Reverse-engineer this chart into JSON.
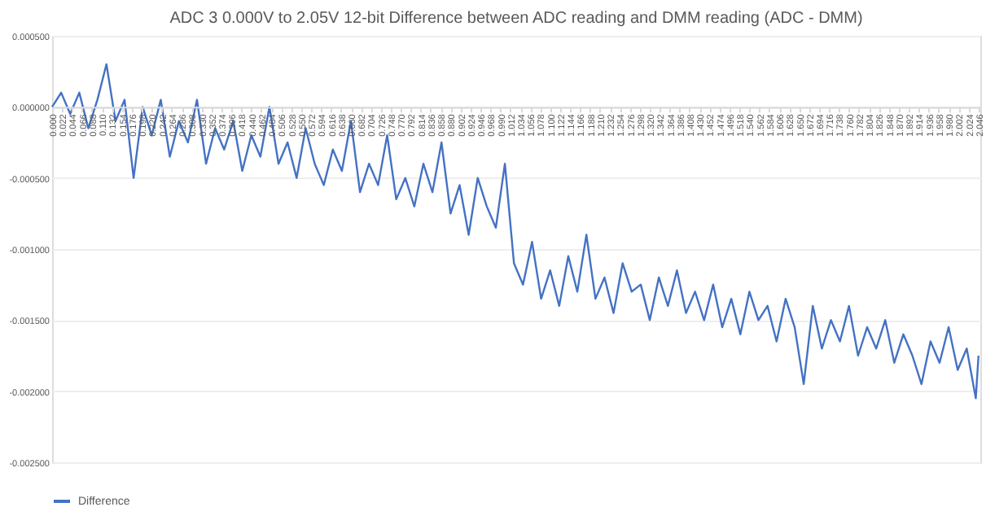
{
  "chart_data": {
    "type": "line",
    "title": "ADC 3 0.000V to 2.05V 12-bit Difference between ADC reading and DMM reading (ADC - DMM)",
    "x": [
      0.0,
      0.02,
      0.04,
      0.06,
      0.08,
      0.1,
      0.12,
      0.14,
      0.16,
      0.18,
      0.2,
      0.22,
      0.24,
      0.26,
      0.28,
      0.3,
      0.32,
      0.34,
      0.36,
      0.38,
      0.4,
      0.42,
      0.44,
      0.46,
      0.48,
      0.5,
      0.52,
      0.54,
      0.56,
      0.58,
      0.6,
      0.62,
      0.64,
      0.66,
      0.68,
      0.7,
      0.72,
      0.74,
      0.76,
      0.78,
      0.8,
      0.82,
      0.84,
      0.86,
      0.88,
      0.9,
      0.92,
      0.94,
      0.96,
      0.98,
      1.0,
      1.02,
      1.04,
      1.06,
      1.08,
      1.1,
      1.12,
      1.14,
      1.16,
      1.18,
      1.2,
      1.22,
      1.24,
      1.26,
      1.28,
      1.3,
      1.32,
      1.34,
      1.36,
      1.38,
      1.4,
      1.42,
      1.44,
      1.46,
      1.48,
      1.5,
      1.52,
      1.54,
      1.56,
      1.58,
      1.6,
      1.62,
      1.64,
      1.66,
      1.68,
      1.7,
      1.72,
      1.74,
      1.76,
      1.78,
      1.8,
      1.82,
      1.84,
      1.86,
      1.88,
      1.9,
      1.92,
      1.94,
      1.96,
      1.98,
      2.0,
      2.02,
      2.04,
      2.046
    ],
    "series": [
      {
        "name": "Difference",
        "color": "#4472c4",
        "values": [
          0,
          0.0001,
          -5e-05,
          0.0001,
          -0.00015,
          5e-05,
          0.0003,
          -0.0001,
          5e-05,
          -0.0005,
          0,
          -0.0002,
          5e-05,
          -0.00035,
          -0.0001,
          -0.00025,
          5e-05,
          -0.0004,
          -0.00015,
          -0.0003,
          -0.0001,
          -0.00045,
          -0.0002,
          -0.00035,
          0,
          -0.0004,
          -0.00025,
          -0.0005,
          -0.00015,
          -0.0004,
          -0.00055,
          -0.0003,
          -0.00045,
          -0.0001,
          -0.0006,
          -0.0004,
          -0.00055,
          -0.0002,
          -0.00065,
          -0.0005,
          -0.0007,
          -0.0004,
          -0.0006,
          -0.00025,
          -0.00075,
          -0.00055,
          -0.0009,
          -0.0005,
          -0.0007,
          -0.00085,
          -0.0004,
          -0.0011,
          -0.00125,
          -0.00095,
          -0.00135,
          -0.00115,
          -0.0014,
          -0.00105,
          -0.0013,
          -0.0009,
          -0.00135,
          -0.0012,
          -0.00145,
          -0.0011,
          -0.0013,
          -0.00125,
          -0.0015,
          -0.0012,
          -0.0014,
          -0.00115,
          -0.00145,
          -0.0013,
          -0.0015,
          -0.00125,
          -0.00155,
          -0.00135,
          -0.0016,
          -0.0013,
          -0.0015,
          -0.0014,
          -0.00165,
          -0.00135,
          -0.00155,
          -0.00195,
          -0.0014,
          -0.0017,
          -0.0015,
          -0.00165,
          -0.0014,
          -0.00175,
          -0.00155,
          -0.0017,
          -0.0015,
          -0.0018,
          -0.0016,
          -0.00175,
          -0.00195,
          -0.00165,
          -0.0018,
          -0.00155,
          -0.00185,
          -0.0017,
          -0.00205,
          -0.00175
        ]
      }
    ],
    "xlim": [
      0,
      2.05
    ],
    "xticks": [
      {
        "value": 0,
        "label": "0.000"
      },
      {
        "value": 0.022,
        "label": "0.022"
      },
      {
        "value": 0.044,
        "label": "0.044"
      },
      {
        "value": 0.066,
        "label": "0.066"
      },
      {
        "value": 0.088,
        "label": "0.088"
      },
      {
        "value": 0.11,
        "label": "0.110"
      },
      {
        "value": 0.132,
        "label": "0.132"
      },
      {
        "value": 0.154,
        "label": "0.154"
      },
      {
        "value": 0.176,
        "label": "0.176"
      },
      {
        "value": 0.198,
        "label": "0.198"
      },
      {
        "value": 0.22,
        "label": "0.220"
      },
      {
        "value": 0.242,
        "label": "0.242"
      },
      {
        "value": 0.264,
        "label": "0.264"
      },
      {
        "value": 0.286,
        "label": "0.286"
      },
      {
        "value": 0.308,
        "label": "0.308"
      },
      {
        "value": 0.33,
        "label": "0.330"
      },
      {
        "value": 0.352,
        "label": "0.352"
      },
      {
        "value": 0.374,
        "label": "0.374"
      },
      {
        "value": 0.396,
        "label": "0.396"
      },
      {
        "value": 0.418,
        "label": "0.418"
      },
      {
        "value": 0.44,
        "label": "0.440"
      },
      {
        "value": 0.462,
        "label": "0.462"
      },
      {
        "value": 0.484,
        "label": "0.484"
      },
      {
        "value": 0.506,
        "label": "0.506"
      },
      {
        "value": 0.528,
        "label": "0.528"
      },
      {
        "value": 0.55,
        "label": "0.550"
      },
      {
        "value": 0.572,
        "label": "0.572"
      },
      {
        "value": 0.594,
        "label": "0.594"
      },
      {
        "value": 0.616,
        "label": "0.616"
      },
      {
        "value": 0.638,
        "label": "0.638"
      },
      {
        "value": 0.66,
        "label": "0.660"
      },
      {
        "value": 0.682,
        "label": "0.682"
      },
      {
        "value": 0.704,
        "label": "0.704"
      },
      {
        "value": 0.726,
        "label": "0.726"
      },
      {
        "value": 0.748,
        "label": "0.748"
      },
      {
        "value": 0.77,
        "label": "0.770"
      },
      {
        "value": 0.792,
        "label": "0.792"
      },
      {
        "value": 0.814,
        "label": "0.814"
      },
      {
        "value": 0.836,
        "label": "0.836"
      },
      {
        "value": 0.858,
        "label": "0.858"
      },
      {
        "value": 0.88,
        "label": "0.880"
      },
      {
        "value": 0.902,
        "label": "0.902"
      },
      {
        "value": 0.924,
        "label": "0.924"
      },
      {
        "value": 0.946,
        "label": "0.946"
      },
      {
        "value": 0.968,
        "label": "0.968"
      },
      {
        "value": 0.99,
        "label": "0.990"
      },
      {
        "value": 1.012,
        "label": "1.012"
      },
      {
        "value": 1.034,
        "label": "1.034"
      },
      {
        "value": 1.056,
        "label": "1.056"
      },
      {
        "value": 1.078,
        "label": "1.078"
      },
      {
        "value": 1.1,
        "label": "1.100"
      },
      {
        "value": 1.122,
        "label": "1.122"
      },
      {
        "value": 1.144,
        "label": "1.144"
      },
      {
        "value": 1.166,
        "label": "1.166"
      },
      {
        "value": 1.188,
        "label": "1.188"
      },
      {
        "value": 1.21,
        "label": "1.210"
      },
      {
        "value": 1.232,
        "label": "1.232"
      },
      {
        "value": 1.254,
        "label": "1.254"
      },
      {
        "value": 1.276,
        "label": "1.276"
      },
      {
        "value": 1.298,
        "label": "1.298"
      },
      {
        "value": 1.32,
        "label": "1.320"
      },
      {
        "value": 1.342,
        "label": "1.342"
      },
      {
        "value": 1.364,
        "label": "1.364"
      },
      {
        "value": 1.386,
        "label": "1.386"
      },
      {
        "value": 1.408,
        "label": "1.408"
      },
      {
        "value": 1.43,
        "label": "1.430"
      },
      {
        "value": 1.452,
        "label": "1.452"
      },
      {
        "value": 1.474,
        "label": "1.474"
      },
      {
        "value": 1.496,
        "label": "1.496"
      },
      {
        "value": 1.518,
        "label": "1.518"
      },
      {
        "value": 1.54,
        "label": "1.540"
      },
      {
        "value": 1.562,
        "label": "1.562"
      },
      {
        "value": 1.584,
        "label": "1.584"
      },
      {
        "value": 1.606,
        "label": "1.606"
      },
      {
        "value": 1.628,
        "label": "1.628"
      },
      {
        "value": 1.65,
        "label": "1.650"
      },
      {
        "value": 1.672,
        "label": "1.672"
      },
      {
        "value": 1.694,
        "label": "1.694"
      },
      {
        "value": 1.716,
        "label": "1.716"
      },
      {
        "value": 1.738,
        "label": "1.738"
      },
      {
        "value": 1.76,
        "label": "1.760"
      },
      {
        "value": 1.782,
        "label": "1.782"
      },
      {
        "value": 1.804,
        "label": "1.804"
      },
      {
        "value": 1.826,
        "label": "1.826"
      },
      {
        "value": 1.848,
        "label": "1.848"
      },
      {
        "value": 1.87,
        "label": "1.870"
      },
      {
        "value": 1.892,
        "label": "1.892"
      },
      {
        "value": 1.914,
        "label": "1.914"
      },
      {
        "value": 1.936,
        "label": "1.936"
      },
      {
        "value": 1.958,
        "label": "1.958"
      },
      {
        "value": 1.98,
        "label": "1.980"
      },
      {
        "value": 2.002,
        "label": "2.002"
      },
      {
        "value": 2.024,
        "label": "2.024"
      },
      {
        "value": 2.046,
        "label": "2.046"
      }
    ],
    "ylim": [
      -0.0025,
      0.0005
    ],
    "yticks": [
      {
        "value": 0.0005,
        "label": "0.000500"
      },
      {
        "value": 0,
        "label": "0.000000"
      },
      {
        "value": -0.0005,
        "label": "-0.000500"
      },
      {
        "value": -0.001,
        "label": "-0.001000"
      },
      {
        "value": -0.0015,
        "label": "-0.001500"
      },
      {
        "value": -0.002,
        "label": "-0.002000"
      },
      {
        "value": -0.0025,
        "label": "-0.002500"
      }
    ],
    "grid": "y",
    "legend": "bottom",
    "line_style": "solid"
  }
}
